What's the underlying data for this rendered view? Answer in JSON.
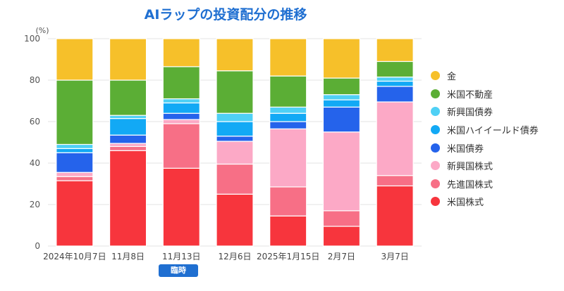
{
  "chart_data": {
    "type": "bar",
    "stacked": true,
    "title": "AIラップの投資配分の推移",
    "ylabel": "(%)",
    "xlabel": "",
    "ylim": [
      0,
      100
    ],
    "yticks": [
      0,
      20,
      40,
      60,
      80,
      100
    ],
    "grid": true,
    "legend_position": "right",
    "categories": [
      "2024年10月7日",
      "11月8日",
      "11月13日",
      "12月6日",
      "2025年1月15日",
      "2月7日",
      "3月7日"
    ],
    "annotations": [
      {
        "category": "11月13日",
        "text": "臨時"
      }
    ],
    "series": [
      {
        "name": "米国株式",
        "color": "#f7353d",
        "values": [
          31.5,
          46,
          37.5,
          25,
          14.5,
          9.5,
          29
        ]
      },
      {
        "name": "先進国株式",
        "color": "#f76f86",
        "values": [
          2,
          2,
          21.5,
          14.5,
          14,
          7.5,
          5
        ]
      },
      {
        "name": "新興国株式",
        "color": "#fca9c6",
        "values": [
          2,
          1.5,
          2,
          11,
          28,
          38,
          35.5
        ]
      },
      {
        "name": "米国債券",
        "color": "#2563eb",
        "values": [
          9.5,
          4,
          3,
          2.5,
          3.5,
          12,
          7.5
        ]
      },
      {
        "name": "米国ハイイールド債券",
        "color": "#12a9f5",
        "values": [
          2,
          8,
          5,
          7,
          4,
          3.5,
          2.5
        ]
      },
      {
        "name": "新興国債券",
        "color": "#4fd0f5",
        "values": [
          2,
          1.5,
          2,
          4,
          3,
          2.5,
          2
        ]
      },
      {
        "name": "米国不動産",
        "color": "#5bae35",
        "values": [
          31,
          17,
          15.5,
          20.5,
          15,
          8,
          7.5
        ]
      },
      {
        "name": "金",
        "color": "#f6c02a",
        "values": [
          20,
          20,
          13.5,
          15.5,
          18,
          19,
          11
        ]
      }
    ]
  }
}
